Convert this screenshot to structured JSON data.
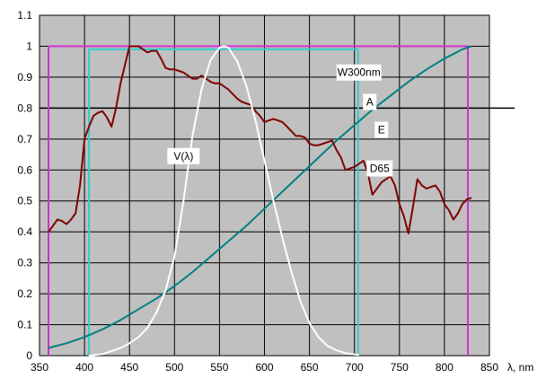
{
  "chart_data": {
    "type": "line",
    "xlabel": "λ, nm",
    "ylabel": "",
    "xlim": [
      350,
      850
    ],
    "ylim": [
      0,
      1.1
    ],
    "x_ticks": [
      "350",
      "400",
      "450",
      "500",
      "550",
      "600",
      "650",
      "700",
      "750",
      "800",
      "850"
    ],
    "y_ticks": [
      "0",
      "0.1",
      "0.2",
      "0.3",
      "0.4",
      "0.5",
      "0.6",
      "0.7",
      "0.8",
      "0.9",
      "1",
      "1.1"
    ],
    "grid": true,
    "plot_background": "#c0c0c0",
    "reference_line": {
      "y": 0.8,
      "color": "#000000"
    },
    "series": [
      {
        "name": "E",
        "color": "#cc33cc",
        "label_at": [
          730,
          0.73
        ],
        "x": [
          359,
          360,
          360,
          826,
          826,
          827
        ],
        "y": [
          0,
          0,
          1,
          1,
          0,
          0
        ]
      },
      {
        "name": "W300nm",
        "color": "#33cccc",
        "label_at": [
          705,
          0.915
        ],
        "x": [
          404,
          405,
          405,
          704,
          704,
          705
        ],
        "y": [
          0,
          0,
          0.99,
          0.99,
          0,
          0
        ]
      },
      {
        "name": "A",
        "color": "#008080",
        "label_at": [
          717,
          0.82
        ],
        "x": [
          360,
          380,
          400,
          420,
          440,
          460,
          480,
          500,
          520,
          540,
          560,
          580,
          600,
          620,
          640,
          660,
          680,
          700,
          720,
          740,
          760,
          780,
          800,
          820,
          830
        ],
        "y": [
          0.025,
          0.04,
          0.06,
          0.085,
          0.115,
          0.15,
          0.185,
          0.225,
          0.27,
          0.32,
          0.37,
          0.42,
          0.475,
          0.53,
          0.585,
          0.64,
          0.695,
          0.745,
          0.795,
          0.84,
          0.885,
          0.925,
          0.96,
          0.99,
          1.0
        ]
      },
      {
        "name": "D65",
        "color": "#800000",
        "label_at": [
          728,
          0.605
        ],
        "x": [
          360,
          365,
          370,
          375,
          380,
          385,
          390,
          395,
          400,
          405,
          410,
          415,
          420,
          425,
          430,
          435,
          440,
          445,
          450,
          455,
          460,
          465,
          470,
          475,
          480,
          485,
          490,
          495,
          500,
          505,
          510,
          515,
          520,
          525,
          530,
          535,
          540,
          545,
          550,
          555,
          560,
          565,
          570,
          575,
          580,
          585,
          590,
          595,
          600,
          605,
          610,
          615,
          620,
          625,
          630,
          635,
          640,
          645,
          650,
          655,
          660,
          665,
          670,
          675,
          680,
          685,
          690,
          695,
          700,
          705,
          710,
          715,
          720,
          725,
          730,
          735,
          740,
          745,
          750,
          755,
          760,
          765,
          770,
          775,
          780,
          785,
          790,
          795,
          800,
          805,
          810,
          815,
          820,
          825,
          830
        ],
        "y": [
          0.4,
          0.42,
          0.44,
          0.435,
          0.425,
          0.44,
          0.46,
          0.55,
          0.7,
          0.74,
          0.775,
          0.785,
          0.79,
          0.77,
          0.74,
          0.8,
          0.88,
          0.94,
          1.0,
          1.0,
          1.0,
          0.99,
          0.98,
          0.985,
          0.985,
          0.96,
          0.93,
          0.925,
          0.925,
          0.92,
          0.915,
          0.905,
          0.895,
          0.895,
          0.905,
          0.895,
          0.885,
          0.88,
          0.88,
          0.87,
          0.86,
          0.845,
          0.83,
          0.82,
          0.815,
          0.81,
          0.79,
          0.775,
          0.755,
          0.76,
          0.765,
          0.76,
          0.755,
          0.74,
          0.725,
          0.71,
          0.71,
          0.705,
          0.685,
          0.68,
          0.68,
          0.685,
          0.69,
          0.695,
          0.665,
          0.64,
          0.6,
          0.605,
          0.61,
          0.62,
          0.63,
          0.59,
          0.52,
          0.54,
          0.56,
          0.57,
          0.58,
          0.55,
          0.49,
          0.45,
          0.395,
          0.48,
          0.57,
          0.55,
          0.54,
          0.545,
          0.55,
          0.53,
          0.49,
          0.47,
          0.44,
          0.46,
          0.49,
          0.505,
          0.51
        ]
      },
      {
        "name": "V(λ)",
        "color": "#ffffff",
        "label_at": [
          510,
          0.645
        ],
        "x": [
          405,
          420,
          440,
          450,
          460,
          470,
          480,
          490,
          500,
          510,
          520,
          530,
          540,
          550,
          555,
          560,
          570,
          580,
          590,
          600,
          610,
          620,
          630,
          640,
          650,
          660,
          670,
          680,
          690,
          700,
          705
        ],
        "y": [
          0.0,
          0.005,
          0.025,
          0.04,
          0.06,
          0.09,
          0.14,
          0.21,
          0.32,
          0.5,
          0.71,
          0.86,
          0.955,
          0.995,
          1.0,
          0.995,
          0.95,
          0.87,
          0.76,
          0.63,
          0.5,
          0.38,
          0.27,
          0.175,
          0.105,
          0.06,
          0.032,
          0.017,
          0.008,
          0.004,
          0.003
        ]
      }
    ]
  }
}
